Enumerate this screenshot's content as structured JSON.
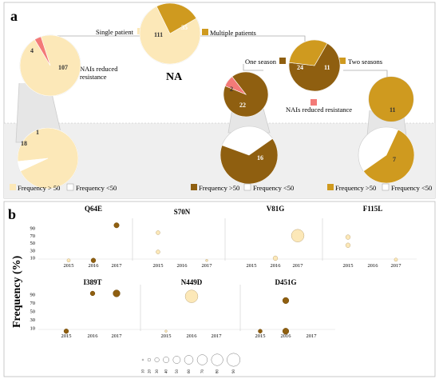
{
  "panel_a": {
    "label": "a",
    "center_label": "NA",
    "root_pie": {
      "values": [
        111,
        35
      ],
      "labels": [
        "111",
        "35"
      ]
    },
    "single_patient_label": "Single patient",
    "multiple_patients_label": "Multiple patients",
    "single_pie": {
      "values": [
        107,
        4
      ],
      "labels": [
        "107",
        "4"
      ]
    },
    "nai_label_1": "NAIs reduced",
    "nai_label_2": "resistance",
    "one_season_label": "One season",
    "two_seasons_label": "Two seasons",
    "multi_pie": {
      "values": [
        24,
        11
      ],
      "labels": [
        "24",
        "11"
      ]
    },
    "one_season_pie": {
      "values": [
        22,
        2
      ],
      "labels": [
        "22",
        "2"
      ]
    },
    "nai_label_full": "NAIs reduced resistance",
    "two_seasons_pie": {
      "values": [
        11
      ],
      "labels": [
        "11"
      ]
    },
    "freq_pie_1": {
      "values": [
        18,
        1
      ],
      "labels": [
        "18",
        "1"
      ]
    },
    "freq_pie_2": {
      "values": [
        16
      ],
      "labels": [
        "16"
      ]
    },
    "freq_pie_3": {
      "values": [
        7
      ],
      "labels": [
        "7"
      ]
    },
    "legend_1": [
      "Frequency > 50",
      "Frequency <50"
    ],
    "legend_2": [
      "Frequency >50",
      "Frequency <50"
    ],
    "legend_3": [
      "Frequency >50",
      "Frequency <50"
    ]
  },
  "panel_b": {
    "label": "b",
    "ylabel": "Frequency (%)",
    "yticks": [
      "10",
      "30",
      "50",
      "70",
      "90"
    ],
    "size_legend": [
      "10",
      "20",
      "30",
      "40",
      "50",
      "60",
      "70",
      "80",
      "90"
    ]
  },
  "colors": {
    "light": "#fce8b8",
    "mid": "#cf9a1f",
    "dark": "#8f5f10",
    "red": "#f37a78",
    "white": "#ffffff",
    "band": "#efefef"
  },
  "chart_data": [
    {
      "type": "pie",
      "title": "NA",
      "categories": [
        "Single patient",
        "Multiple patients"
      ],
      "values": [
        111,
        35
      ]
    },
    {
      "type": "pie",
      "categories": [
        "Single patient",
        "NAIs reduced resistance"
      ],
      "values": [
        107,
        4
      ]
    },
    {
      "type": "pie",
      "categories": [
        "One season",
        "Two seasons"
      ],
      "values": [
        24,
        11
      ]
    },
    {
      "type": "pie",
      "categories": [
        "One season",
        "NAIs reduced resistance"
      ],
      "values": [
        22,
        2
      ]
    },
    {
      "type": "pie",
      "categories": [
        "Two seasons"
      ],
      "values": [
        11
      ]
    },
    {
      "type": "pie",
      "categories": [
        "Frequency > 50",
        "Frequency <50"
      ],
      "values": [
        18,
        1
      ]
    },
    {
      "type": "pie",
      "categories": [
        "Frequency >50",
        "Frequency <50"
      ],
      "values": [
        16,
        0
      ]
    },
    {
      "type": "pie",
      "categories": [
        "Frequency >50",
        "Frequency <50"
      ],
      "values": [
        7,
        0
      ]
    },
    {
      "type": "scatter",
      "ylabel": "Frequency (%)",
      "ylim": [
        0,
        100
      ],
      "yticks": [
        10,
        30,
        50,
        70,
        90
      ],
      "x_categories": [
        "2015",
        "2016",
        "2017"
      ],
      "panels": [
        {
          "name": "Q64E",
          "points": [
            {
              "x": "2015",
              "y": 2,
              "size": 2,
              "tone": "light"
            },
            {
              "x": "2016",
              "y": 2,
              "size": 4,
              "tone": "dark"
            },
            {
              "x": "2017",
              "y": 97,
              "size": 5,
              "tone": "dark"
            }
          ]
        },
        {
          "name": "S70N",
          "points": [
            {
              "x": "2015",
              "y": 77,
              "size": 3,
              "tone": "light"
            },
            {
              "x": "2015",
              "y": 25,
              "size": 3,
              "tone": "light"
            },
            {
              "x": "2017",
              "y": 2,
              "size": 1,
              "tone": "light"
            }
          ]
        },
        {
          "name": "V81G",
          "points": [
            {
              "x": "2016",
              "y": 8,
              "size": 4,
              "tone": "light"
            },
            {
              "x": "2017",
              "y": 69,
              "size": 30,
              "tone": "light"
            }
          ]
        },
        {
          "name": "F115L",
          "points": [
            {
              "x": "2015",
              "y": 65,
              "size": 4,
              "tone": "light"
            },
            {
              "x": "2015",
              "y": 43,
              "size": 4,
              "tone": "light"
            },
            {
              "x": "2017",
              "y": 4,
              "size": 2,
              "tone": "light"
            }
          ]
        },
        {
          "name": "I389T",
          "points": [
            {
              "x": "2015",
              "y": 2,
              "size": 4,
              "tone": "dark"
            },
            {
              "x": "2016",
              "y": 92,
              "size": 4,
              "tone": "dark"
            },
            {
              "x": "2017",
              "y": 92,
              "size": 9,
              "tone": "dark"
            }
          ]
        },
        {
          "name": "N449D",
          "points": [
            {
              "x": "2015",
              "y": 2,
              "size": 1,
              "tone": "light"
            },
            {
              "x": "2016",
              "y": 85,
              "size": 30,
              "tone": "light"
            }
          ]
        },
        {
          "name": "D451G",
          "points": [
            {
              "x": "2015",
              "y": 2,
              "size": 3,
              "tone": "dark"
            },
            {
              "x": "2016",
              "y": 75,
              "size": 7,
              "tone": "dark"
            },
            {
              "x": "2016",
              "y": 2,
              "size": 7,
              "tone": "dark"
            }
          ]
        }
      ]
    }
  ]
}
